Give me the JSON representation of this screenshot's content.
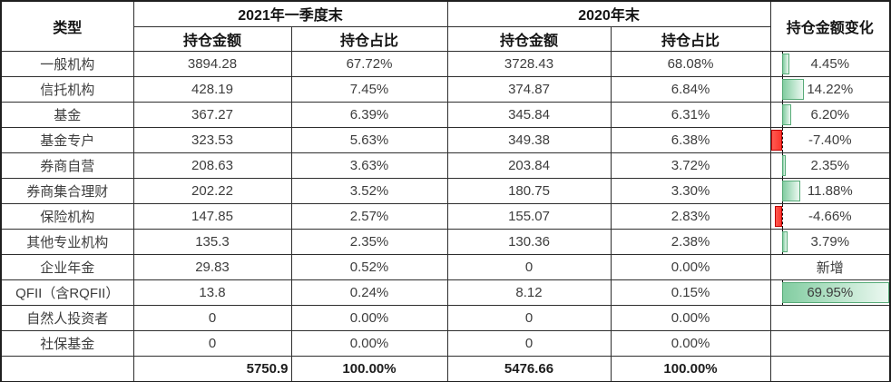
{
  "colors": {
    "positive_bar_border": "#57ab78",
    "positive_bar_fill_start": "#82cda1",
    "positive_bar_fill_end": "#ecf8f1",
    "negative_bar_border": "#c00000",
    "negative_bar_fill_start": "#ff5a50",
    "negative_bar_fill_end": "#fb352c",
    "axis_color": "#111111",
    "grid_border": "#2e2e2e"
  },
  "chart_data": {
    "type": "table",
    "header": {
      "type_label": "类型",
      "period1_label": "2021年一季度末",
      "period2_label": "2020年末",
      "amount_label": "持仓金额",
      "ratio_label": "持仓占比",
      "change_label": "持仓金额变化"
    },
    "bar_axis": {
      "min": -7.4,
      "max": 69.95
    },
    "rows": [
      {
        "type": "一般机构",
        "amount_2021": "3894.28",
        "ratio_2021": "67.72%",
        "amount_2020": "3728.43",
        "ratio_2020": "68.08%",
        "change": "4.45%",
        "change_value": 4.45
      },
      {
        "type": "信托机构",
        "amount_2021": "428.19",
        "ratio_2021": "7.45%",
        "amount_2020": "374.87",
        "ratio_2020": "6.84%",
        "change": "14.22%",
        "change_value": 14.22
      },
      {
        "type": "基金",
        "amount_2021": "367.27",
        "ratio_2021": "6.39%",
        "amount_2020": "345.84",
        "ratio_2020": "6.31%",
        "change": "6.20%",
        "change_value": 6.2
      },
      {
        "type": "基金专户",
        "amount_2021": "323.53",
        "ratio_2021": "5.63%",
        "amount_2020": "349.38",
        "ratio_2020": "6.38%",
        "change": "-7.40%",
        "change_value": -7.4
      },
      {
        "type": "券商自营",
        "amount_2021": "208.63",
        "ratio_2021": "3.63%",
        "amount_2020": "203.84",
        "ratio_2020": "3.72%",
        "change": "2.35%",
        "change_value": 2.35
      },
      {
        "type": "券商集合理财",
        "amount_2021": "202.22",
        "ratio_2021": "3.52%",
        "amount_2020": "180.75",
        "ratio_2020": "3.30%",
        "change": "11.88%",
        "change_value": 11.88
      },
      {
        "type": "保险机构",
        "amount_2021": "147.85",
        "ratio_2021": "2.57%",
        "amount_2020": "155.07",
        "ratio_2020": "2.83%",
        "change": "-4.66%",
        "change_value": -4.66
      },
      {
        "type": "其他专业机构",
        "amount_2021": "135.3",
        "ratio_2021": "2.35%",
        "amount_2020": "130.36",
        "ratio_2020": "2.38%",
        "change": "3.79%",
        "change_value": 3.79
      },
      {
        "type": "企业年金",
        "amount_2021": "29.83",
        "ratio_2021": "0.52%",
        "amount_2020": "0",
        "ratio_2020": "0.00%",
        "change": "新增",
        "change_value": null
      },
      {
        "type": "QFII（含RQFII）",
        "amount_2021": "13.8",
        "ratio_2021": "0.24%",
        "amount_2020": "8.12",
        "ratio_2020": "0.15%",
        "change": "69.95%",
        "change_value": 69.95
      },
      {
        "type": "自然人投资者",
        "amount_2021": "0",
        "ratio_2021": "0.00%",
        "amount_2020": "0",
        "ratio_2020": "0.00%",
        "change": "",
        "change_value": null
      },
      {
        "type": "社保基金",
        "amount_2021": "0",
        "ratio_2021": "0.00%",
        "amount_2020": "0",
        "ratio_2020": "0.00%",
        "change": "",
        "change_value": null
      }
    ],
    "total": {
      "type": "",
      "amount_2021": "5750.9",
      "ratio_2021": "100.00%",
      "amount_2020": "5476.66",
      "ratio_2020": "100.00%",
      "change": ""
    }
  }
}
